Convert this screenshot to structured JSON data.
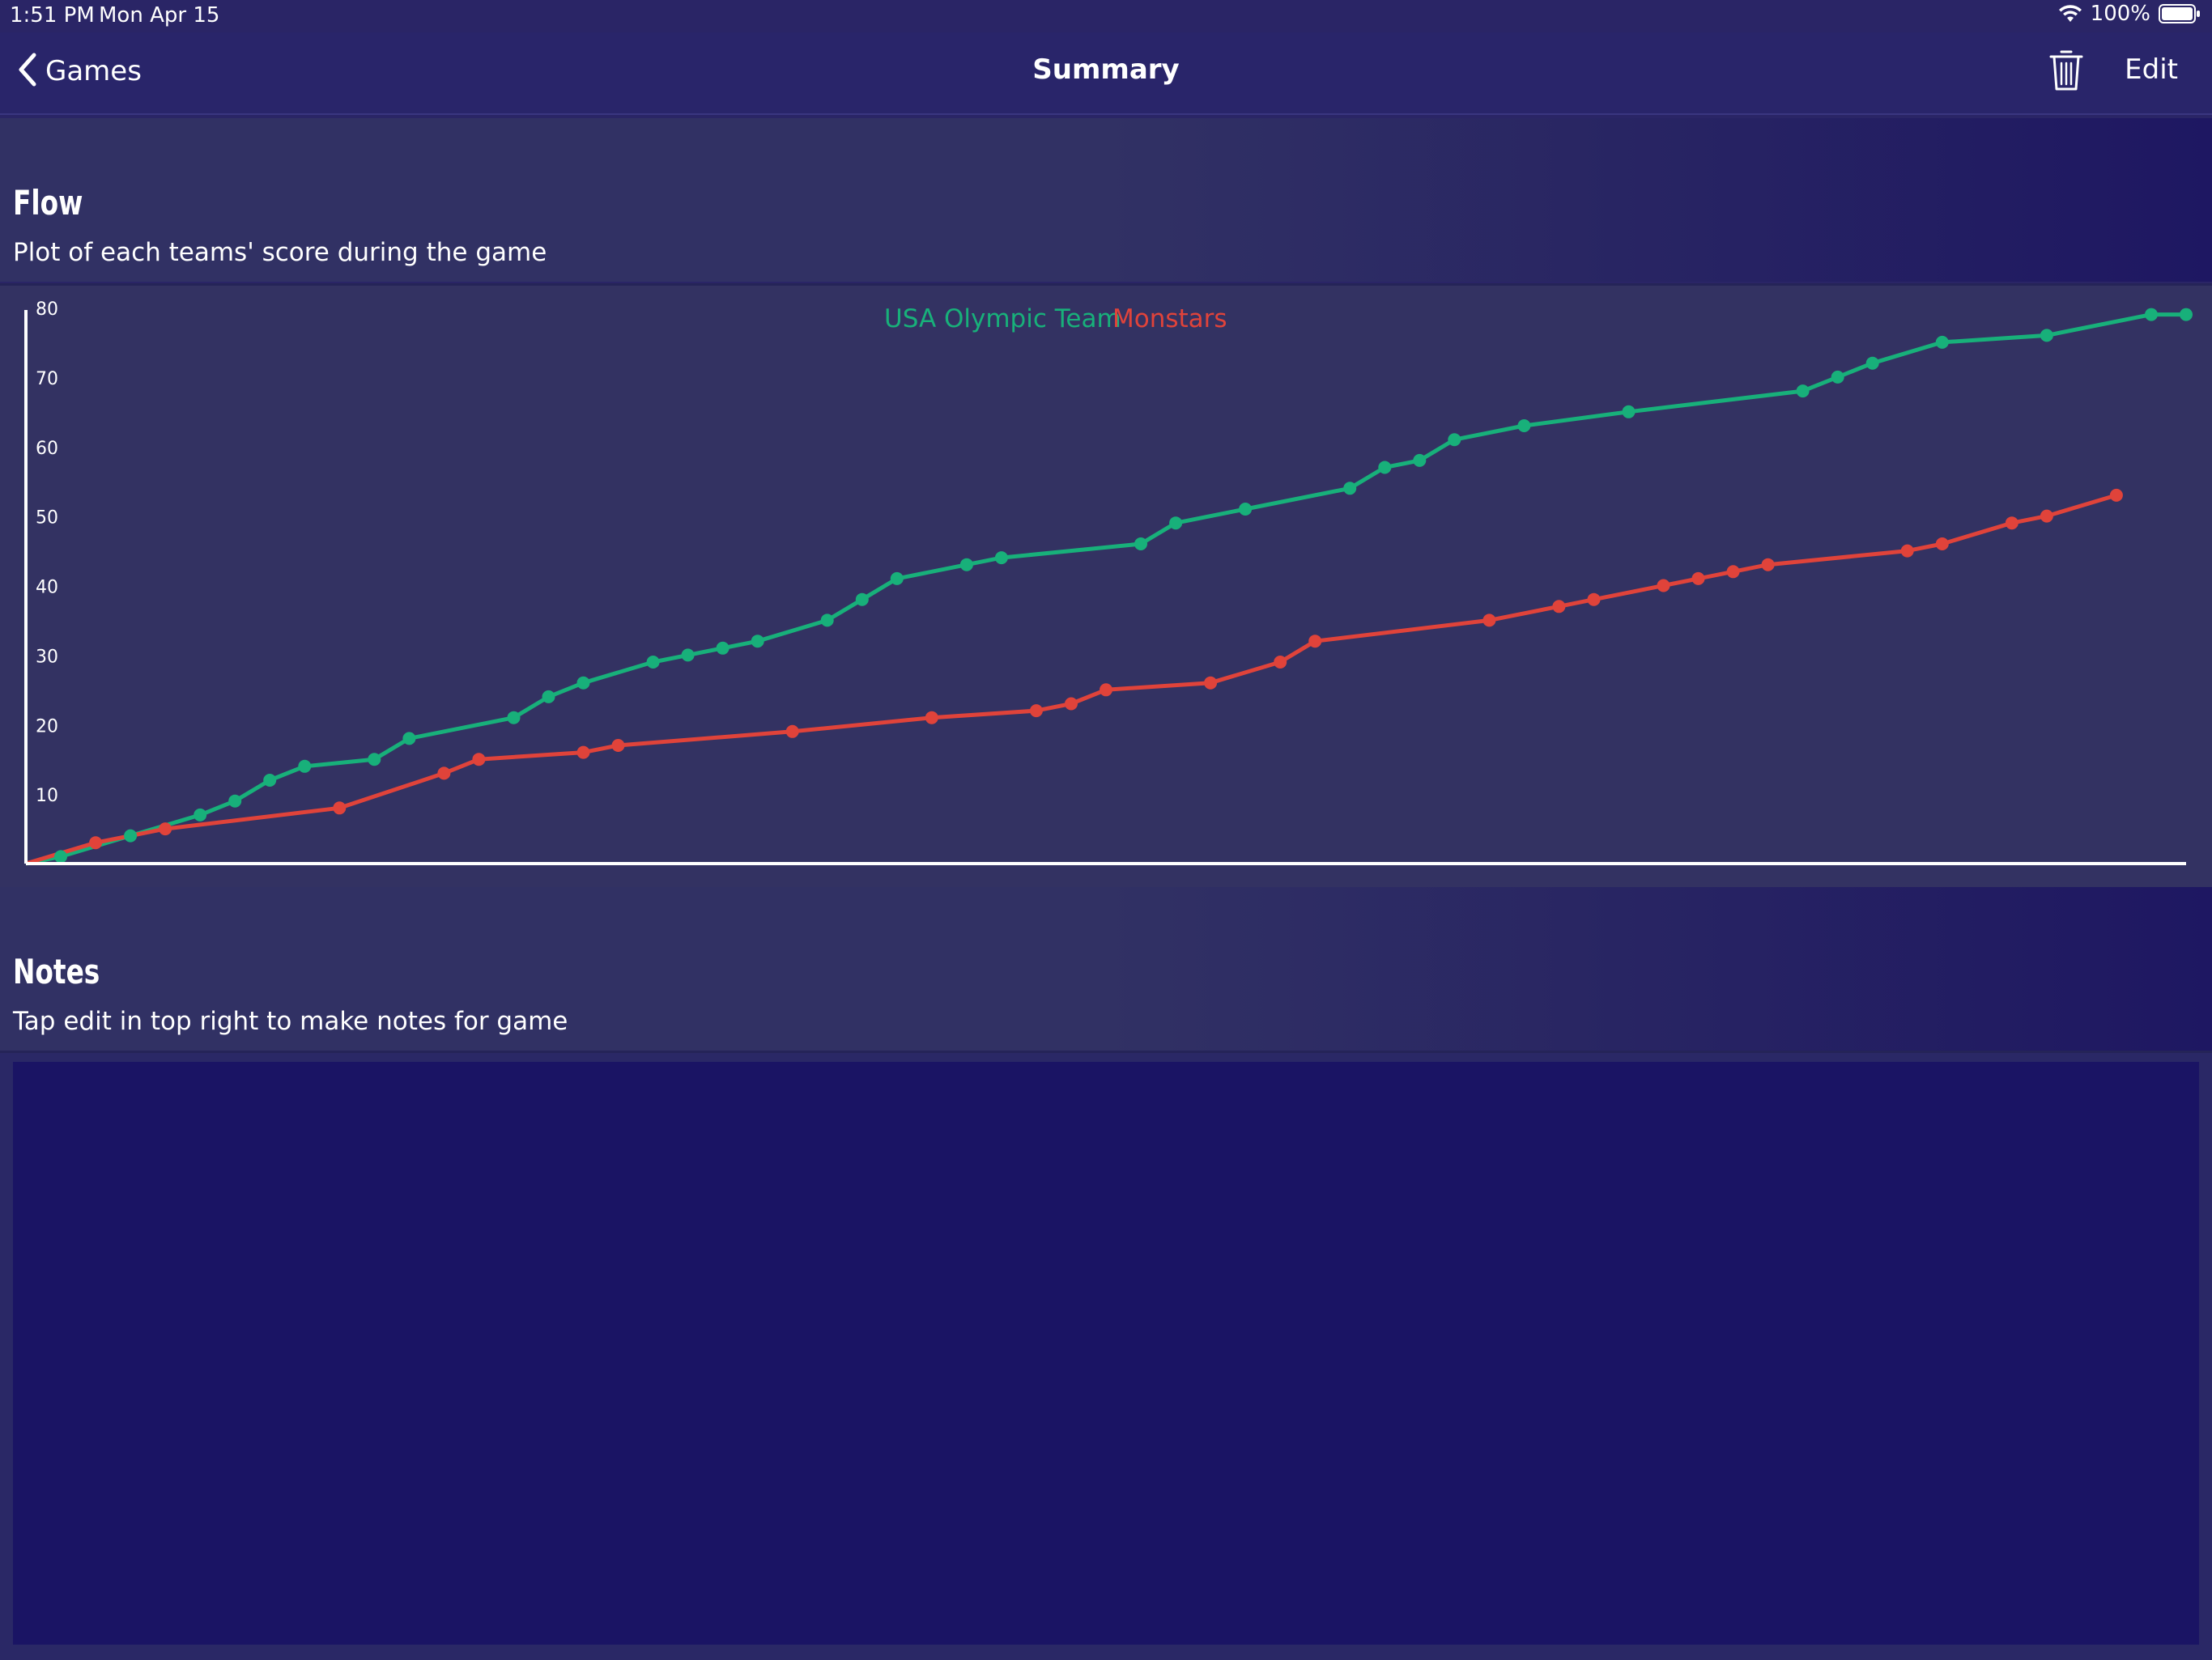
{
  "status": {
    "time": "1:51 PM",
    "date": "Mon Apr 15",
    "battery": "100%"
  },
  "nav": {
    "back_label": "Games",
    "title": "Summary",
    "edit_label": "Edit"
  },
  "icons": {
    "back": "chevron-left-icon",
    "trash": "trash-icon",
    "wifi": "wifi-icon",
    "battery": "battery-icon"
  },
  "flow": {
    "title": "Flow",
    "subtitle": "Plot of each teams' score during the game"
  },
  "notes": {
    "title": "Notes",
    "subtitle": "Tap edit in top right to make notes for game",
    "body": ""
  },
  "colors": {
    "usa": "#18b07a",
    "monstars": "#e0433a",
    "axis": "#ffffff"
  },
  "chart_data": {
    "type": "line",
    "title": "",
    "xlabel": "",
    "ylabel": "",
    "ylim": [
      0,
      80
    ],
    "xlim": [
      0,
      62
    ],
    "yticks": [
      10,
      20,
      30,
      40,
      50,
      60,
      70,
      80
    ],
    "legend": "top-center",
    "grid": false,
    "series": [
      {
        "name": "USA Olympic Team",
        "color": "#18b07a",
        "x": [
          0,
          1,
          3,
          5,
          6,
          7,
          8,
          10,
          11,
          14,
          15,
          16,
          18,
          19,
          20,
          21,
          23,
          24,
          25,
          27,
          28,
          32,
          33,
          35,
          38,
          39,
          40,
          41,
          43,
          46,
          51,
          52,
          53,
          55,
          58,
          61,
          62
        ],
        "y": [
          0,
          1,
          4,
          7,
          9,
          12,
          14,
          15,
          18,
          21,
          24,
          26,
          29,
          30,
          31,
          32,
          35,
          38,
          41,
          43,
          44,
          46,
          49,
          51,
          54,
          57,
          58,
          61,
          63,
          65,
          68,
          70,
          72,
          75,
          76,
          79,
          79
        ]
      },
      {
        "name": "Monstars",
        "color": "#e0433a",
        "x": [
          0,
          2,
          4,
          9,
          12,
          13,
          16,
          17,
          22,
          26,
          29,
          30,
          31,
          34,
          36,
          37,
          42,
          44,
          45,
          47,
          48,
          49,
          50,
          54,
          55,
          57,
          58,
          60
        ],
        "y": [
          0,
          3,
          5,
          8,
          13,
          15,
          16,
          17,
          19,
          21,
          22,
          23,
          25,
          26,
          29,
          32,
          35,
          37,
          38,
          40,
          41,
          42,
          43,
          45,
          46,
          49,
          50,
          53
        ]
      }
    ]
  }
}
